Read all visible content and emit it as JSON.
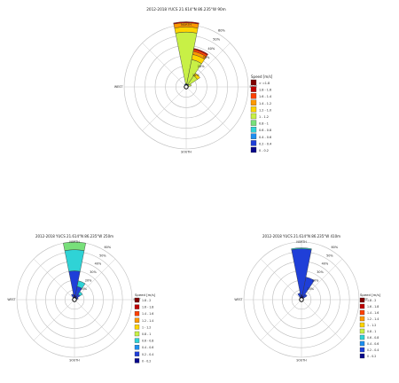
{
  "chart_data": [
    {
      "type": "windrose",
      "title": "2012-2018   YUCS 21.614°N  86.235°W   90m",
      "directions": {
        "north": "NORTH",
        "south": "SOUTH",
        "east": "EAST",
        "west": "WEST"
      },
      "radial_labels": [
        "10%",
        "20%",
        "30%",
        "40%",
        "50%",
        "60%"
      ],
      "legend_title": "Speed [m/s]",
      "legend_items": [
        {
          "label": "> =1.8",
          "color": "#7f0000"
        },
        {
          "label": "1.8 - 1.6",
          "color": "#c00000"
        },
        {
          "label": "1.6 - 1.4",
          "color": "#ff4000"
        },
        {
          "label": "1.4 - 1.2",
          "color": "#ff9900"
        },
        {
          "label": "1.2 - 1.0",
          "color": "#ffd400"
        },
        {
          "label": "1 - 1.2",
          "color": "#c8f046"
        },
        {
          "label": "0.8 - 1",
          "color": "#78e07a"
        },
        {
          "label": "0.6 - 0.8",
          "color": "#2fd3d6"
        },
        {
          "label": "0.4 - 0.6",
          "color": "#1f8ff0"
        },
        {
          "label": "0.2 - 0.4",
          "color": "#1f3fd8"
        },
        {
          "label": "0 - 0.2",
          "color": "#08088a"
        }
      ],
      "sectors": [
        {
          "angle_deg": 0,
          "stacks": [
            {
              "color": "#08088a",
              "value": 3
            },
            {
              "color": "#c8f046",
              "value": 50
            },
            {
              "color": "#ffd400",
              "value": 5
            },
            {
              "color": "#ff9900",
              "value": 4
            },
            {
              "color": "#c00000",
              "value": 1
            }
          ]
        },
        {
          "angle_deg": 22.5,
          "stacks": [
            {
              "color": "#08088a",
              "value": 3
            },
            {
              "color": "#c8f046",
              "value": 24
            },
            {
              "color": "#ffd400",
              "value": 5
            },
            {
              "color": "#ff9900",
              "value": 3
            },
            {
              "color": "#ff4000",
              "value": 2
            },
            {
              "color": "#c00000",
              "value": 1
            }
          ]
        },
        {
          "angle_deg": 45,
          "stacks": [
            {
              "color": "#08088a",
              "value": 3
            },
            {
              "color": "#c8f046",
              "value": 10
            },
            {
              "color": "#ffd400",
              "value": 3
            }
          ]
        },
        {
          "angle_deg": 67.5,
          "stacks": [
            {
              "color": "#08088a",
              "value": 2
            },
            {
              "color": "#c8f046",
              "value": 3
            }
          ]
        },
        {
          "angle_deg": 90,
          "stacks": [
            {
              "color": "#08088a",
              "value": 2
            }
          ]
        },
        {
          "angle_deg": 337.5,
          "stacks": [
            {
              "color": "#08088a",
              "value": 2
            },
            {
              "color": "#1f8ff0",
              "value": 1
            }
          ]
        }
      ],
      "rmax": 60
    },
    {
      "type": "windrose",
      "title": "2012-2018   YUCS 21.614°N  86.235°W   250m",
      "directions": {
        "north": "NORTH",
        "south": "SOUTH",
        "east": "EAST",
        "west": "WEST"
      },
      "radial_labels": [
        "10%",
        "20%",
        "30%",
        "40%",
        "50%",
        "60%"
      ],
      "legend_title": "Speed [m/s]",
      "legend_items": [
        {
          "label": "1.8 - 2",
          "color": "#7f0000"
        },
        {
          "label": "1.6 - 1.8",
          "color": "#c00000"
        },
        {
          "label": "1.4 - 1.6",
          "color": "#ff4000"
        },
        {
          "label": "1.2 - 1.4",
          "color": "#ff9900"
        },
        {
          "label": "1 - 1.2",
          "color": "#ffd400"
        },
        {
          "label": "0.8 - 1",
          "color": "#c8f046"
        },
        {
          "label": "0.6 - 0.8",
          "color": "#2fd3d6"
        },
        {
          "label": "0.4 - 0.6",
          "color": "#1f8ff0"
        },
        {
          "label": "0.2 - 0.4",
          "color": "#1f3fd8"
        },
        {
          "label": "0 - 0.2",
          "color": "#08088a"
        }
      ],
      "sectors": [
        {
          "angle_deg": 0,
          "stacks": [
            {
              "color": "#08088a",
              "value": 5
            },
            {
              "color": "#1f3fd8",
              "value": 25
            },
            {
              "color": "#2fd3d6",
              "value": 22
            },
            {
              "color": "#78e07a",
              "value": 8
            }
          ]
        },
        {
          "angle_deg": 22.5,
          "stacks": [
            {
              "color": "#08088a",
              "value": 4
            },
            {
              "color": "#1f3fd8",
              "value": 10
            },
            {
              "color": "#2fd3d6",
              "value": 6
            }
          ]
        },
        {
          "angle_deg": 45,
          "stacks": [
            {
              "color": "#08088a",
              "value": 3
            },
            {
              "color": "#1f3fd8",
              "value": 4
            },
            {
              "color": "#2fd3d6",
              "value": 3
            }
          ]
        },
        {
          "angle_deg": 67.5,
          "stacks": [
            {
              "color": "#08088a",
              "value": 2
            },
            {
              "color": "#1f3fd8",
              "value": 2
            }
          ]
        },
        {
          "angle_deg": 337.5,
          "stacks": [
            {
              "color": "#08088a",
              "value": 3
            },
            {
              "color": "#1f3fd8",
              "value": 3
            }
          ]
        }
      ],
      "rmax": 60
    },
    {
      "type": "windrose",
      "title": "2012-2018   YUCS 21.614°N  86.235°W   410m",
      "directions": {
        "north": "NORTH",
        "south": "SOUTH",
        "east": "EAST",
        "west": "WEST"
      },
      "radial_labels": [
        "10%",
        "20%",
        "30%",
        "40%",
        "50%",
        "60%"
      ],
      "legend_title": "Speed [m/s]",
      "legend_items": [
        {
          "label": "1.8 - 2",
          "color": "#7f0000"
        },
        {
          "label": "1.6 - 1.8",
          "color": "#c00000"
        },
        {
          "label": "1.4 - 1.6",
          "color": "#ff4000"
        },
        {
          "label": "1.2 - 1.4",
          "color": "#ff9900"
        },
        {
          "label": "1 - 1.2",
          "color": "#ffd400"
        },
        {
          "label": "0.8 - 1",
          "color": "#c8f046"
        },
        {
          "label": "0.6 - 0.8",
          "color": "#2fd3d6"
        },
        {
          "label": "0.4 - 0.6",
          "color": "#1f8ff0"
        },
        {
          "label": "0.2 - 0.4",
          "color": "#1f3fd8"
        },
        {
          "label": "0 - 0.2",
          "color": "#08088a"
        }
      ],
      "sectors": [
        {
          "angle_deg": 0,
          "stacks": [
            {
              "color": "#08088a",
              "value": 5
            },
            {
              "color": "#1f3fd8",
              "value": 48
            },
            {
              "color": "#2fd3d6",
              "value": 1
            }
          ]
        },
        {
          "angle_deg": 22.5,
          "stacks": [
            {
              "color": "#08088a",
              "value": 4
            },
            {
              "color": "#1f3fd8",
              "value": 20
            }
          ]
        },
        {
          "angle_deg": 45,
          "stacks": [
            {
              "color": "#08088a",
              "value": 3
            },
            {
              "color": "#1f3fd8",
              "value": 4
            }
          ]
        },
        {
          "angle_deg": 337.5,
          "stacks": [
            {
              "color": "#08088a",
              "value": 3
            },
            {
              "color": "#1f3fd8",
              "value": 4
            }
          ]
        }
      ],
      "rmax": 60
    }
  ]
}
